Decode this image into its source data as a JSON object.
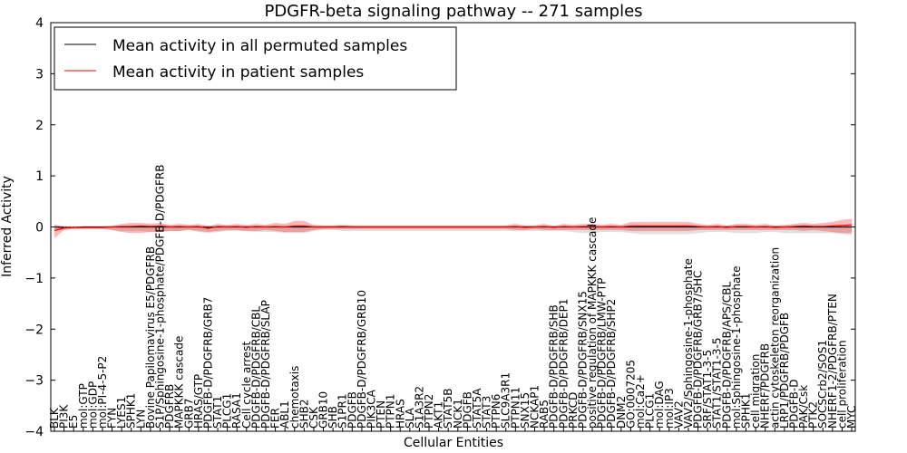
{
  "chart_data": {
    "type": "line",
    "title": "PDGFR-beta signaling pathway -- 271 samples",
    "xlabel": "Cellular Entities",
    "ylabel": "Inferred Activity",
    "ylim": [
      -4,
      4
    ],
    "yticks": [
      "4",
      "3",
      "2",
      "1",
      "0",
      "−1",
      "−2",
      "−3",
      "−4"
    ],
    "legend": {
      "position": "top-left",
      "entries": [
        {
          "label": "Mean activity in all permuted samples",
          "color": "#000000"
        },
        {
          "label": "Mean activity in patient samples",
          "color": "#ff0000"
        }
      ]
    },
    "categories": [
      "BLK",
      "PI3K",
      "E5",
      "mol:GTP",
      "mol:GDP",
      "mol:PI-4-5-P2",
      "FYN",
      "LYES1",
      "SPHK1",
      "LYN",
      "Bovine Papilomavirus E5/PDGFRB",
      "S1P/Sphingosine-1-phosphate/PDGFB-D/PDGFRB",
      "PDGFRB",
      "MAPKKK cascade",
      "GRB7",
      "HRAS/GTP",
      "PDGFB-D/PDGFRB/GRB7",
      "STAT1",
      "PLCG1",
      "RASA1",
      "Cell cycle arrest",
      "PDGFB-D/PDGFRB/CBL",
      "PDGFB-D/PDGFRB/SLAP",
      "FER",
      "ABL1",
      "chemotaxis",
      "SHB2",
      "CSK",
      "GRB10",
      "SHB",
      "S1PR1",
      "PDGFB",
      "PDGFB-D/PDGFRB/GRB10",
      "PIK3CA",
      "PTEN",
      "PTPN1",
      "HRAS",
      "SLA",
      "S1A3R2",
      "PTPN2",
      "AKT1",
      "STAT5B",
      "NCK1",
      "PDGFB",
      "STAT5A",
      "STAT3",
      "PTPN6",
      "SLC9A3R1",
      "PTPN11",
      "SNX15",
      "NCKAP1",
      "RAB5",
      "PDGFB-D/PDGFRB/SHB",
      "PDGFB-D/PDGFRB/DEP1",
      "PRKCD",
      "PDGFB-D/PDGFRB/SNX15",
      "positive regulation of MAPKKK cascade",
      "PDGFB-D/PDGFRB/LMW-PTP",
      "PDGFB-D/PDGFRB/SHP2",
      "DNM2",
      "GO:0007205",
      "mol:Ca2+",
      "PLCG1",
      "mol:DAG",
      "mol:IP3",
      "VAV2",
      "VAV2/Sphingosine-1-phosphate",
      "PDGFB-D/PDGFRB/GRB7/SHC",
      "SRF/STAT1-3-5",
      "STAT1/STAT1-3-5",
      "PDGFB-D/PDGFRB/APS/CBL",
      "mol:Sphingosine-1-phosphate",
      "SPHK1",
      "cell migration",
      "NHERF/PDGFRB",
      "actin cytoskeleton reorganization",
      "LRP1/PDGFRB/PDGFB",
      "PDGFB-D",
      "PAK/Csk",
      "PTK2",
      "SOCSCrb2/SOS1",
      "NHERF1-2/PDGFRB/PTEN",
      "cell proliferation",
      "MYC"
    ],
    "xticks_visible": [
      "BLK",
      "PI3K",
      "E5",
      "mol:GTP",
      "mol:GDP",
      "mol:PI-4-5-P2",
      "FYN",
      "LYES1",
      "SPHK1",
      "LYN",
      "Bovine Papilomavirus E5/PDGFRB",
      "S1P/Sphingosine-1-phosphate/PDGFB-D/PDGFRB",
      "PDGFRB",
      "MAPKKK cascade",
      "GRB7",
      "HRAS/GTP",
      "PDGFB-D/PDGFRB/GRB7",
      "STAT1",
      "PLCG1",
      "RASA1",
      "Cell cycle arrest",
      "PDGFB-D/PDGFRB/CBL",
      "PDGFB-D/PDGFRB/SLAP",
      "FER",
      "ABL1",
      "chemotaxis",
      "SHB2",
      "CSK",
      "GRB10",
      "SHB",
      "S1PR1",
      "PDGFB",
      "PDGFB-D/PDGFRB/GRB10",
      "PIK3CA",
      "PTEN",
      "PTPN1",
      "HRAS",
      "SLA",
      "S1A3R2",
      "PTPN2",
      "AKT1",
      "STAT5B",
      "NCK1",
      "PDGFB",
      "STAT5A",
      "STAT3",
      "PTPN6",
      "SLC9A3R1",
      "PTPN11",
      "SNX15",
      "NCKAP1",
      "RAB5",
      "PDGFB-D/PDGFRB/SHB",
      "PDGFB-D/PDGFRB/DEP1",
      "PRKCD",
      "PDGFB-D/PDGFRB/SNX15",
      "positive regulation of MAPKKK cascade",
      "PDGFB-D/PDGFRB/LMW-PTP",
      "PDGFB-D/PDGFRB/SHP2",
      "DNM2",
      "GO:0007205",
      "mol:Ca2+",
      "PLCG1",
      "mol:DAG",
      "mol:IP3",
      "VAV2",
      "VAV2/Sphingosine-1-phosphate",
      "PDGFB-D/PDGFRB/GRB7/SHC",
      "SRF/STAT1-3-5",
      "STAT1/STAT1-3-5",
      "PDGFB-D/PDGFRB/APS/CBL",
      "mol:Sphingosine-1-phosphate",
      "SPHK1",
      "cell migration",
      "NHERF/PDGFRB",
      "actin cytoskeleton reorganization",
      "LRP1/PDGFRB/PDGFB",
      "PDGFB-D",
      "PAK/Csk",
      "PTK2",
      "SOCSCrb2/SOS1",
      "NHERF1-2/PDGFRB/PTEN",
      "cell proliferation",
      "MYC"
    ],
    "series": [
      {
        "name": "Mean activity in all permuted samples",
        "color": "#000000",
        "values": [
          0,
          -0.01,
          -0.01,
          0,
          0,
          0,
          0,
          0,
          0,
          0,
          0,
          0,
          0,
          0,
          0,
          0,
          -0.01,
          0,
          0,
          0,
          0,
          0,
          0,
          0,
          0,
          0,
          0,
          0,
          0,
          0,
          0,
          0,
          0,
          0,
          0,
          0,
          0,
          0,
          0,
          0,
          0,
          0,
          0,
          0,
          0,
          0,
          0,
          0,
          0,
          0,
          0,
          0,
          0,
          0,
          0,
          0,
          0,
          0,
          0,
          0,
          0,
          0,
          0,
          0,
          0,
          0,
          0,
          0,
          0,
          0,
          0,
          0,
          0,
          0,
          0,
          0,
          0,
          0,
          0,
          0,
          0,
          0,
          0,
          0
        ],
        "band_upper": [
          0.02,
          0.02,
          0.01,
          0.01,
          0.01,
          0.01,
          0.02,
          0.02,
          0.02,
          0.02,
          0.02,
          0.02,
          0.02,
          0.02,
          0.02,
          0.02,
          0.03,
          0.02,
          0.02,
          0.02,
          0.02,
          0.02,
          0.02,
          0.02,
          0.02,
          0.02,
          0.02,
          0.02,
          0.02,
          0.02,
          0.02,
          0.02,
          0.02,
          0.02,
          0.02,
          0.02,
          0.02,
          0.02,
          0.02,
          0.02,
          0.02,
          0.02,
          0.02,
          0.02,
          0.02,
          0.02,
          0.02,
          0.02,
          0.02,
          0.02,
          0.02,
          0.02,
          0.02,
          0.02,
          0.02,
          0.02,
          0.02,
          0.02,
          0.02,
          0.02,
          0.02,
          0.02,
          0.02,
          0.02,
          0.02,
          0.02,
          0.02,
          0.02,
          0.02,
          0.02,
          0.02,
          0.02,
          0.02,
          0.02,
          0.02,
          0.02,
          0.02,
          0.02,
          0.02,
          0.02,
          0.02,
          0.02,
          0.02,
          0.02
        ],
        "band_lower": [
          -0.08,
          -0.05,
          -0.04,
          -0.04,
          -0.04,
          -0.04,
          -0.06,
          -0.08,
          -0.08,
          -0.08,
          -0.1,
          -0.1,
          -0.08,
          -0.08,
          -0.06,
          -0.1,
          -0.12,
          -0.1,
          -0.08,
          -0.08,
          -0.08,
          -0.1,
          -0.1,
          -0.1,
          -0.12,
          -0.12,
          -0.12,
          -0.08,
          -0.06,
          -0.06,
          -0.08,
          -0.08,
          -0.08,
          -0.08,
          -0.08,
          -0.08,
          -0.08,
          -0.08,
          -0.08,
          -0.08,
          -0.08,
          -0.08,
          -0.08,
          -0.08,
          -0.08,
          -0.08,
          -0.08,
          -0.08,
          -0.08,
          -0.08,
          -0.08,
          -0.08,
          -0.08,
          -0.08,
          -0.1,
          -0.12,
          -0.12,
          -0.1,
          -0.1,
          -0.1,
          -0.12,
          -0.14,
          -0.14,
          -0.14,
          -0.14,
          -0.14,
          -0.14,
          -0.12,
          -0.1,
          -0.1,
          -0.1,
          -0.12,
          -0.12,
          -0.12,
          -0.1,
          -0.1,
          -0.12,
          -0.12,
          -0.12,
          -0.12,
          -0.12,
          -0.12,
          -0.14,
          -0.16
        ]
      },
      {
        "name": "Mean activity in patient samples",
        "color": "#ff0000",
        "values": [
          -0.07,
          -0.02,
          -0.01,
          -0.01,
          -0.01,
          -0.01,
          0,
          0.01,
          0.01,
          0.02,
          0.01,
          0.02,
          0,
          0.01,
          0,
          0.01,
          -0.03,
          0.01,
          0,
          0.01,
          -0.01,
          0.01,
          0,
          0.01,
          0,
          0.02,
          0.02,
          0,
          0,
          0,
          0.01,
          0,
          0,
          0,
          0,
          0,
          0,
          0,
          0,
          0,
          0,
          0,
          0,
          0,
          0,
          0,
          0,
          0,
          0.01,
          -0.01,
          0,
          0.01,
          -0.01,
          0.01,
          0,
          0.01,
          0.01,
          0,
          0.01,
          0,
          0.02,
          0.02,
          0.02,
          0.02,
          0.02,
          0.02,
          0.02,
          0.01,
          0,
          0.01,
          -0.01,
          0.01,
          0.01,
          0,
          0.01,
          -0.01,
          0,
          0.01,
          0.02,
          0.01,
          0.01,
          0.02,
          0.03,
          0.04
        ],
        "band_upper": [
          0.05,
          0.01,
          0.01,
          0.01,
          0.01,
          0.01,
          0.02,
          0.06,
          0.08,
          0.08,
          0.06,
          0.08,
          0.04,
          0.06,
          0.04,
          0.06,
          0.02,
          0.06,
          0.04,
          0.06,
          0.04,
          0.06,
          0.04,
          0.08,
          0.06,
          0.12,
          0.12,
          0.04,
          0.03,
          0.03,
          0.04,
          0.03,
          0.03,
          0.03,
          0.03,
          0.03,
          0.03,
          0.03,
          0.03,
          0.03,
          0.03,
          0.03,
          0.03,
          0.03,
          0.03,
          0.03,
          0.03,
          0.03,
          0.06,
          0.03,
          0.03,
          0.06,
          0.02,
          0.06,
          0.04,
          0.06,
          0.06,
          0.04,
          0.06,
          0.04,
          0.1,
          0.1,
          0.1,
          0.1,
          0.1,
          0.1,
          0.1,
          0.06,
          0.04,
          0.06,
          0.03,
          0.06,
          0.06,
          0.04,
          0.06,
          0.03,
          0.04,
          0.06,
          0.08,
          0.06,
          0.08,
          0.1,
          0.14,
          0.16
        ],
        "band_lower": [
          -0.22,
          -0.06,
          -0.04,
          -0.04,
          -0.04,
          -0.04,
          -0.06,
          -0.1,
          -0.12,
          -0.12,
          -0.1,
          -0.1,
          -0.08,
          -0.08,
          -0.06,
          -0.08,
          -0.1,
          -0.08,
          -0.06,
          -0.06,
          -0.08,
          -0.08,
          -0.06,
          -0.08,
          -0.1,
          -0.1,
          -0.1,
          -0.06,
          -0.04,
          -0.04,
          -0.04,
          -0.04,
          -0.04,
          -0.04,
          -0.04,
          -0.04,
          -0.04,
          -0.04,
          -0.04,
          -0.04,
          -0.04,
          -0.04,
          -0.04,
          -0.04,
          -0.04,
          -0.04,
          -0.04,
          -0.04,
          -0.06,
          -0.06,
          -0.04,
          -0.06,
          -0.06,
          -0.06,
          -0.06,
          -0.06,
          -0.06,
          -0.06,
          -0.06,
          -0.06,
          -0.08,
          -0.08,
          -0.08,
          -0.08,
          -0.08,
          -0.08,
          -0.08,
          -0.06,
          -0.06,
          -0.06,
          -0.06,
          -0.06,
          -0.06,
          -0.06,
          -0.06,
          -0.06,
          -0.06,
          -0.06,
          -0.08,
          -0.06,
          -0.08,
          -0.1,
          -0.12,
          -0.12
        ]
      }
    ]
  }
}
